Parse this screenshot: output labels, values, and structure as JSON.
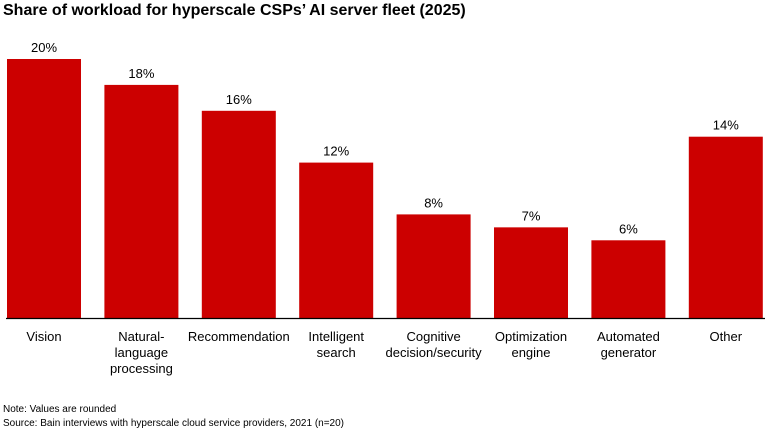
{
  "chart_data": {
    "type": "bar",
    "title": "Share of workload for hyperscale CSPs’ AI server fleet (2025)",
    "categories": [
      "Vision",
      "Natural-\nlanguage\nprocessing",
      "Recommendation",
      "Intelligent\nsearch",
      "Cognitive\ndecision/security",
      "Optimization\nengine",
      "Automated\ngenerator",
      "Other"
    ],
    "values": [
      20,
      18,
      16,
      12,
      8,
      7,
      6,
      14
    ],
    "data_labels": [
      "20%",
      "18%",
      "16%",
      "12%",
      "8%",
      "7%",
      "6%",
      "14%"
    ],
    "xlabel": "",
    "ylabel": "",
    "ylim": [
      0,
      20
    ],
    "grid": false,
    "bar_color": "#CC0000"
  },
  "footer": {
    "note": "Note: Values are rounded",
    "source": "Source: Bain interviews with hyperscale cloud service providers, 2021 (n=20)"
  }
}
